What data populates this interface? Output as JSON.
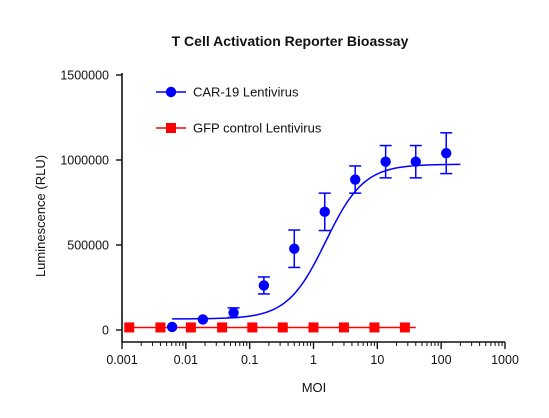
{
  "chart_data": {
    "type": "scatter",
    "title": "T Cell Activation Reporter Bioassay",
    "xlabel": "MOI",
    "ylabel": "Luminescence (RLU)",
    "x_scale": "log10",
    "xlim": [
      0.001,
      1000
    ],
    "ylim": [
      0,
      1500000
    ],
    "x_ticks": [
      0.001,
      0.01,
      0.1,
      1,
      10,
      100,
      1000
    ],
    "x_tick_labels": [
      "0.001",
      "0.01",
      "0.1",
      "1",
      "10",
      "100",
      "1000"
    ],
    "y_ticks": [
      0,
      500000,
      1000000,
      1500000
    ],
    "y_tick_labels": [
      "0",
      "500000",
      "1000000",
      "1500000"
    ],
    "grid": false,
    "legend_position": "top-left",
    "series": [
      {
        "name": "CAR-19 Lentivirus",
        "color": "#0000ff",
        "marker": "circle",
        "x": [
          0.0061,
          0.0185,
          0.056,
          0.167,
          0.5,
          1.5,
          4.5,
          13.5,
          40,
          120
        ],
        "y": [
          18000,
          62000,
          102000,
          262000,
          478000,
          695000,
          885000,
          990000,
          990000,
          1040000
        ],
        "error": [
          0,
          0,
          28000,
          50000,
          110000,
          110000,
          80000,
          95000,
          95000,
          120000
        ],
        "fit": "sigmoidal",
        "fit_x_range": [
          0.0061,
          200
        ]
      },
      {
        "name": "GFP control Lentivirus",
        "color": "#ff0000",
        "marker": "square",
        "x": [
          0.0013,
          0.004,
          0.012,
          0.037,
          0.11,
          0.33,
          1.0,
          3.0,
          9.0,
          27
        ],
        "y": [
          15000,
          15000,
          15000,
          15000,
          15000,
          15000,
          15000,
          15000,
          15000,
          15000
        ],
        "error": [
          0,
          0,
          0,
          0,
          0,
          0,
          0,
          0,
          0,
          0
        ],
        "fit": "flat",
        "fit_x_range": [
          0.0013,
          40
        ]
      }
    ]
  }
}
